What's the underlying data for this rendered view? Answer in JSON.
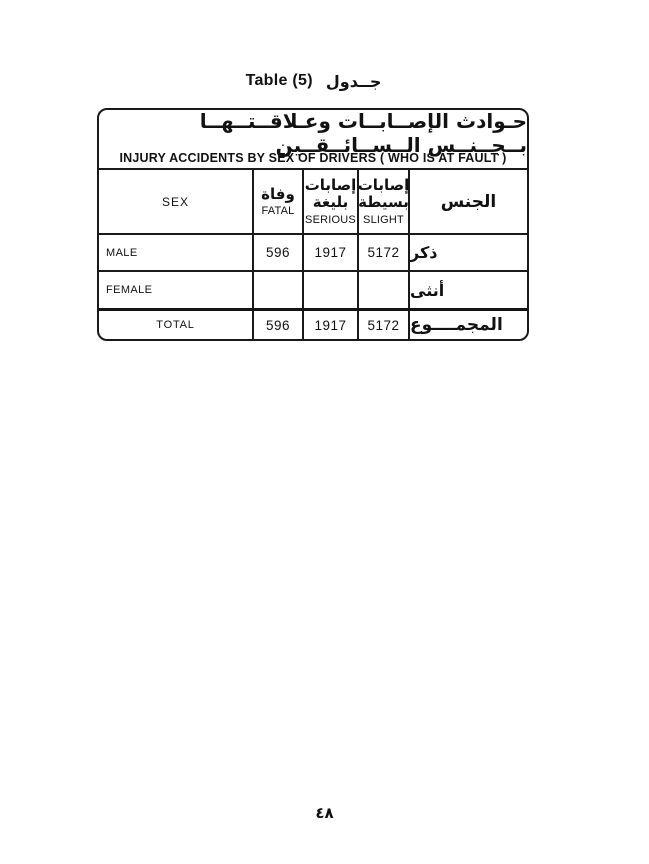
{
  "page": {
    "title_en": "Table (5)",
    "title_ar": "جــدول",
    "page_number": "٤٨"
  },
  "colors": {
    "paper": "#ffffff",
    "ink": "#121212",
    "border": "#1a1a1a"
  },
  "table": {
    "title_ar": "حـوادث الإصــابــات وعـلاقــتــهــا بــجــنــس الــســائــقــين",
    "title_en": "INJURY ACCIDENTS BY SEX OF DRIVERS ( WHO IS AT FAULT )",
    "columns": {
      "sex_en": "SEX",
      "fatal_ar": "وفاة",
      "fatal_en": "FATAL",
      "serious_ar_line1": "إصابات",
      "serious_ar_line2": "بليغة",
      "serious_en": "SERIOUS",
      "slight_ar_line1": "إصابات",
      "slight_ar_line2": "بسيطة",
      "slight_en": "SLIGHT",
      "gender_ar": "الجنس"
    },
    "rows": [
      {
        "label_en": "MALE",
        "fatal": "596",
        "serious": "1917",
        "slight": "5172",
        "label_ar": "ذكر"
      },
      {
        "label_en": "FEMALE",
        "fatal": "",
        "serious": "",
        "slight": "",
        "label_ar": "أنثى"
      },
      {
        "label_en": "TOTAL",
        "fatal": "596",
        "serious": "1917",
        "slight": "5172",
        "label_ar": "المجمــــوع"
      }
    ]
  }
}
